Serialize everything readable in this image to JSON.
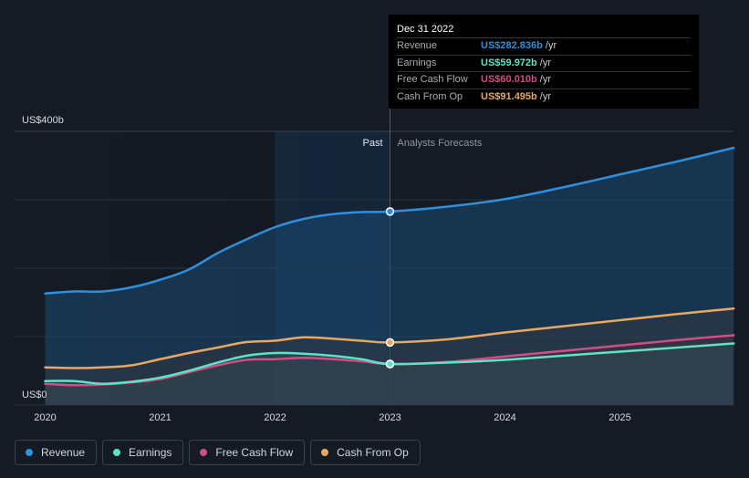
{
  "chart_data": {
    "type": "area",
    "y_unit_label_top": "US$400b",
    "y_unit_label_bottom": "US$0",
    "ylim": [
      0,
      400
    ],
    "xlim": [
      2019.77,
      2025.99
    ],
    "divider_x": 2023.0,
    "region_labels": {
      "past": "Past",
      "forecast": "Analysts Forecasts"
    },
    "x_ticks": [
      {
        "value": 2020,
        "label": "2020"
      },
      {
        "value": 2021,
        "label": "2021"
      },
      {
        "value": 2022,
        "label": "2022"
      },
      {
        "value": 2023,
        "label": "2023"
      },
      {
        "value": 2024,
        "label": "2024"
      },
      {
        "value": 2025,
        "label": "2025"
      }
    ],
    "grid_y": [
      0,
      100,
      200,
      300,
      400
    ],
    "series": [
      {
        "name": "Revenue",
        "color": "#2f8fdc",
        "points": [
          [
            2020.0,
            163
          ],
          [
            2020.25,
            166
          ],
          [
            2020.5,
            166
          ],
          [
            2020.75,
            172
          ],
          [
            2021.0,
            183
          ],
          [
            2021.25,
            198
          ],
          [
            2021.5,
            222
          ],
          [
            2021.75,
            242
          ],
          [
            2022.0,
            260
          ],
          [
            2022.25,
            272
          ],
          [
            2022.5,
            279
          ],
          [
            2022.75,
            282
          ],
          [
            2023.0,
            282.836
          ],
          [
            2023.5,
            290
          ],
          [
            2024.0,
            301
          ],
          [
            2024.5,
            318
          ],
          [
            2025.0,
            337
          ],
          [
            2025.5,
            356
          ],
          [
            2025.99,
            376
          ]
        ]
      },
      {
        "name": "Earnings",
        "color": "#5fe3c6",
        "points": [
          [
            2020.0,
            35
          ],
          [
            2020.25,
            35
          ],
          [
            2020.5,
            31
          ],
          [
            2020.75,
            34
          ],
          [
            2021.0,
            40
          ],
          [
            2021.25,
            50
          ],
          [
            2021.5,
            62
          ],
          [
            2021.75,
            72
          ],
          [
            2022.0,
            76
          ],
          [
            2022.25,
            75
          ],
          [
            2022.5,
            72
          ],
          [
            2022.75,
            67
          ],
          [
            2023.0,
            59.972
          ],
          [
            2023.5,
            62
          ],
          [
            2024.0,
            66
          ],
          [
            2024.5,
            72
          ],
          [
            2025.0,
            78
          ],
          [
            2025.5,
            84
          ],
          [
            2025.99,
            90
          ]
        ]
      },
      {
        "name": "Free Cash Flow",
        "color": "#d04e86",
        "points": [
          [
            2020.0,
            31
          ],
          [
            2020.25,
            29
          ],
          [
            2020.5,
            30
          ],
          [
            2020.75,
            33
          ],
          [
            2021.0,
            38
          ],
          [
            2021.25,
            48
          ],
          [
            2021.5,
            58
          ],
          [
            2021.75,
            66
          ],
          [
            2022.0,
            67
          ],
          [
            2022.25,
            69
          ],
          [
            2022.5,
            67
          ],
          [
            2022.75,
            64
          ],
          [
            2023.0,
            60.01
          ],
          [
            2023.5,
            63
          ],
          [
            2024.0,
            71
          ],
          [
            2024.5,
            79
          ],
          [
            2025.0,
            87
          ],
          [
            2025.5,
            95
          ],
          [
            2025.99,
            102
          ]
        ]
      },
      {
        "name": "Cash From Op",
        "color": "#e8a863",
        "points": [
          [
            2020.0,
            55
          ],
          [
            2020.25,
            54
          ],
          [
            2020.5,
            55
          ],
          [
            2020.75,
            58
          ],
          [
            2021.0,
            67
          ],
          [
            2021.25,
            76
          ],
          [
            2021.5,
            84
          ],
          [
            2021.75,
            92
          ],
          [
            2022.0,
            94
          ],
          [
            2022.25,
            99
          ],
          [
            2022.5,
            97
          ],
          [
            2022.75,
            94
          ],
          [
            2023.0,
            91.495
          ],
          [
            2023.5,
            96
          ],
          [
            2024.0,
            106
          ],
          [
            2024.5,
            115
          ],
          [
            2025.0,
            124
          ],
          [
            2025.5,
            133
          ],
          [
            2025.99,
            141
          ]
        ]
      }
    ]
  },
  "tooltip": {
    "date": "Dec 31 2022",
    "rows": [
      {
        "label": "Revenue",
        "value": "US$282.836b",
        "unit": "/yr",
        "color": "#2f8fdc"
      },
      {
        "label": "Earnings",
        "value": "US$59.972b",
        "unit": "/yr",
        "color": "#5fe3c6"
      },
      {
        "label": "Free Cash Flow",
        "value": "US$60.010b",
        "unit": "/yr",
        "color": "#d04e86"
      },
      {
        "label": "Cash From Op",
        "value": "US$91.495b",
        "unit": "/yr",
        "color": "#e8a863"
      }
    ]
  },
  "legend": [
    {
      "label": "Revenue",
      "color": "#2f8fdc"
    },
    {
      "label": "Earnings",
      "color": "#5fe3c6"
    },
    {
      "label": "Free Cash Flow",
      "color": "#d04e86"
    },
    {
      "label": "Cash From Op",
      "color": "#e8a863"
    }
  ]
}
